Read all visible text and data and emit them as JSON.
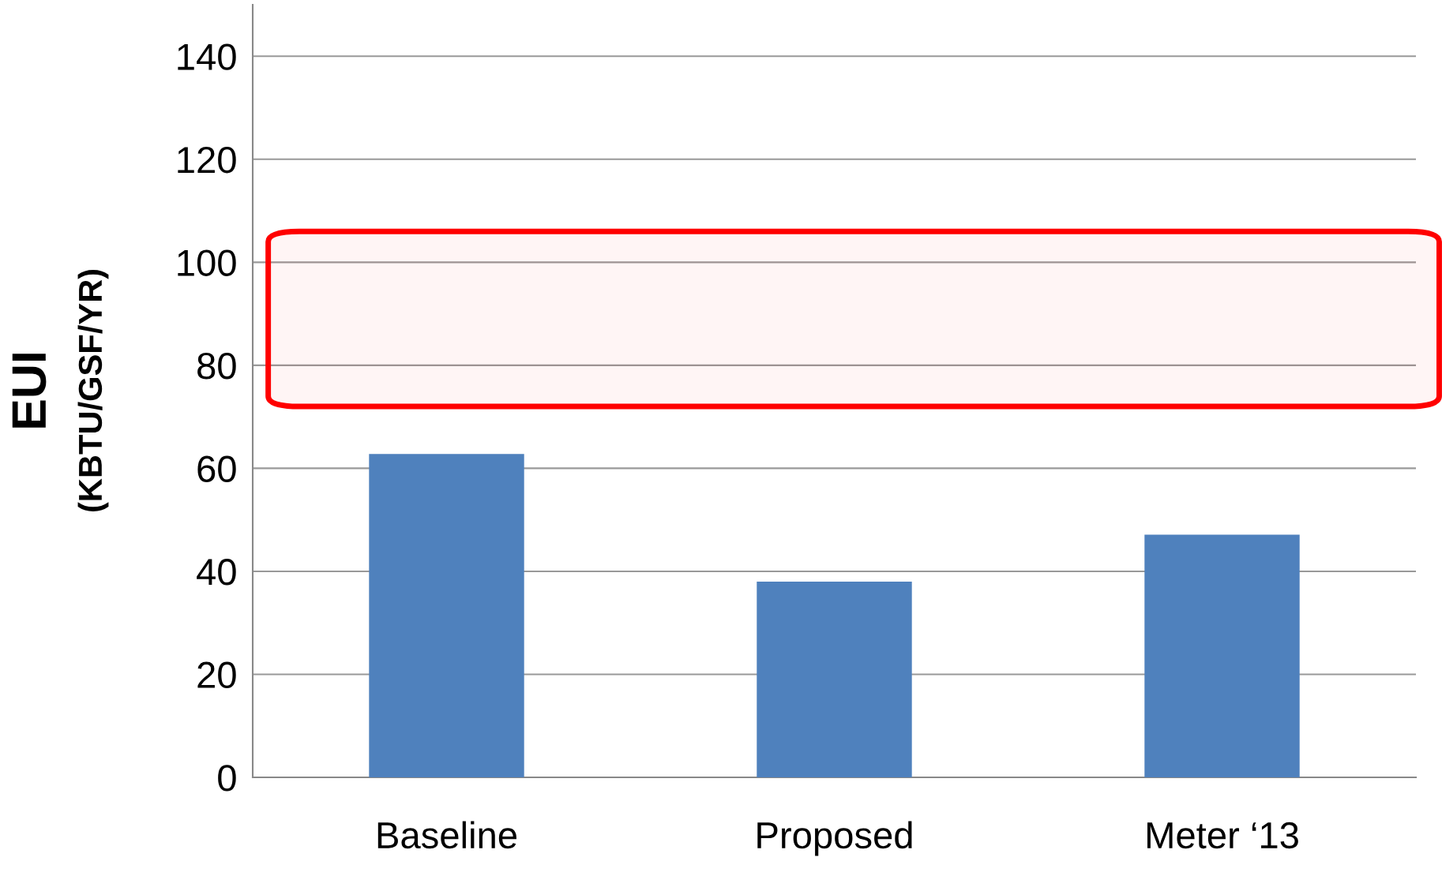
{
  "chart_data": {
    "type": "bar",
    "ylabel": "EUI\n(KBTU/GSF/YR)",
    "categories": [
      "Baseline",
      "Proposed",
      "Meter ‘13"
    ],
    "values": [
      62.8,
      38.0,
      47.1
    ],
    "color": "#4f81bd",
    "ylim": [
      0,
      150
    ],
    "yticks": [
      0,
      20,
      40,
      60,
      80,
      100,
      120,
      140
    ],
    "grid": "y",
    "legend": false,
    "bands": [
      {
        "axis": "y",
        "from": 72,
        "to": 106,
        "color": "#ff0000"
      }
    ]
  }
}
